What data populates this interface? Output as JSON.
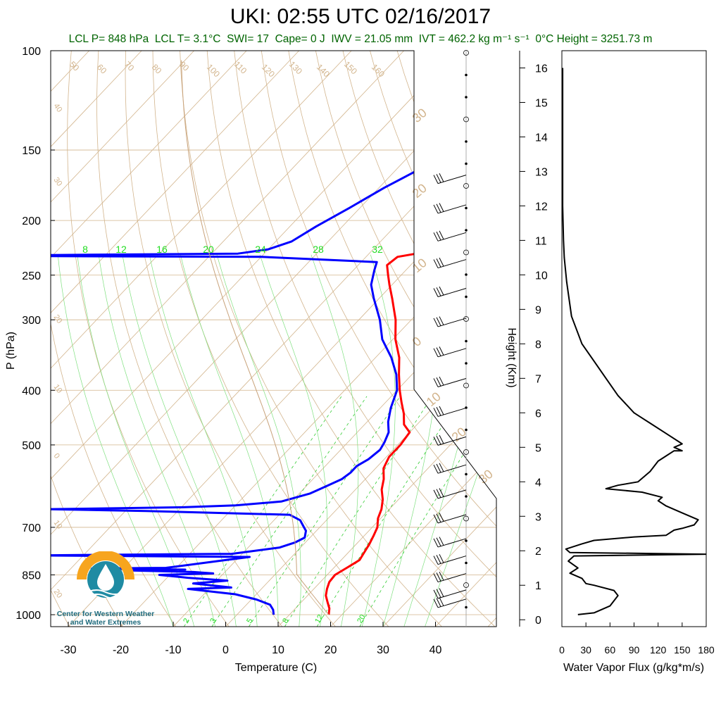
{
  "title": "UKI: 02:55 UTC 02/16/2017",
  "subtitle": {
    "lcl_p": "LCL P= 848 hPa",
    "lcl_t": "LCL T= 3.1°C",
    "swi": "SWI= 17",
    "cape": "Cape= 0 J",
    "iwv": "IWV = 21.05 mm",
    "ivt": "IVT = 462.2 kg m⁻¹ s⁻¹",
    "freezing": "0°C Height = 3251.73 m"
  },
  "logo": {
    "line1": "Center for Western Weather",
    "line2": "and Water Extremes"
  },
  "colors": {
    "temperature": "#ff0000",
    "dewpoint": "#0000ff",
    "isotherm": "#d2b48c",
    "mixing": "#00cc00",
    "subtitle": "#006400"
  },
  "chart_data": [
    {
      "type": "line",
      "name": "skew-t",
      "xlabel": "Temperature (C)",
      "ylabel": "P (hPa)",
      "x_ticks": [
        "-30",
        "-20",
        "-10",
        "0",
        "10",
        "20",
        "30",
        "40"
      ],
      "y_ticks": [
        "100",
        "150",
        "200",
        "250",
        "300",
        "400",
        "500",
        "700",
        "850",
        "1000"
      ],
      "xlim": [
        -34,
        51
      ],
      "ylim_pressure": [
        1050,
        100
      ],
      "y_scale": "log",
      "skew_label_temps": [
        "50",
        "60",
        "70",
        "80",
        "90",
        "100",
        "110",
        "120",
        "130",
        "140",
        "150",
        "160"
      ],
      "dry_adiabat_labels_right": [
        "30",
        "20",
        "10",
        "0",
        "10",
        "20",
        "30"
      ],
      "dry_adiabat_labels_left": [
        "40",
        "30",
        "20",
        "10",
        "0",
        "10",
        "20"
      ],
      "mixing_ratio_top": [
        "8",
        "12",
        "16",
        "20",
        "24",
        "28",
        "32"
      ],
      "mixing_ratio_bottom": [
        "2",
        "3",
        "5",
        "8",
        "12",
        "20"
      ],
      "temperature": [
        [
          1000,
          17.5
        ],
        [
          975,
          16.5
        ],
        [
          950,
          15
        ],
        [
          925,
          13.5
        ],
        [
          900,
          12.5
        ],
        [
          875,
          11.7
        ],
        [
          850,
          11.5
        ],
        [
          825,
          12.5
        ],
        [
          800,
          13.5
        ],
        [
          775,
          13
        ],
        [
          750,
          12.5
        ],
        [
          725,
          11.8
        ],
        [
          700,
          11
        ],
        [
          675,
          9.5
        ],
        [
          650,
          8.5
        ],
        [
          625,
          7
        ],
        [
          600,
          5
        ],
        [
          575,
          3.5
        ],
        [
          550,
          1.5
        ],
        [
          525,
          0.5
        ],
        [
          500,
          0.5
        ],
        [
          475,
          0
        ],
        [
          460,
          -2.5
        ],
        [
          440,
          -4.5
        ],
        [
          420,
          -7
        ],
        [
          400,
          -9.5
        ],
        [
          375,
          -12.5
        ],
        [
          350,
          -15.5
        ],
        [
          325,
          -19.5
        ],
        [
          300,
          -23
        ],
        [
          275,
          -27.5
        ],
        [
          260,
          -30.5
        ],
        [
          250,
          -32.5
        ],
        [
          240,
          -34.5
        ],
        [
          232,
          -34
        ],
        [
          228,
          -30
        ],
        [
          220,
          -22
        ],
        [
          210,
          -18
        ],
        [
          200,
          -16
        ],
        [
          185,
          -14
        ],
        [
          175,
          -13
        ],
        [
          165,
          -11
        ],
        [
          155,
          -9
        ],
        [
          150,
          -8
        ]
      ],
      "dewpoint": [
        [
          1000,
          7
        ],
        [
          980,
          6
        ],
        [
          960,
          4.5
        ],
        [
          940,
          1
        ],
        [
          920,
          -4
        ],
        [
          900,
          -14
        ],
        [
          895,
          -6
        ],
        [
          880,
          -14
        ],
        [
          870,
          -8
        ],
        [
          860,
          -16
        ],
        [
          850,
          -22
        ],
        [
          845,
          -12
        ],
        [
          840,
          -16
        ],
        [
          835,
          -28
        ],
        [
          832,
          -18
        ],
        [
          828,
          -36
        ],
        [
          826,
          -22
        ],
        [
          800,
          -12
        ],
        [
          790,
          -8
        ],
        [
          785,
          -50
        ],
        [
          780,
          -12
        ],
        [
          760,
          -4
        ],
        [
          745,
          -2
        ],
        [
          730,
          -1
        ],
        [
          710,
          -2
        ],
        [
          700,
          -3
        ],
        [
          690,
          -4
        ],
        [
          680,
          -5
        ],
        [
          665,
          -8
        ],
        [
          655,
          -36
        ],
        [
          650,
          -55
        ],
        [
          645,
          -30
        ],
        [
          640,
          -20
        ],
        [
          630,
          -12
        ],
        [
          610,
          -8
        ],
        [
          590,
          -6
        ],
        [
          575,
          -4.5
        ],
        [
          560,
          -4
        ],
        [
          545,
          -4
        ],
        [
          530,
          -3
        ],
        [
          510,
          -2.5
        ],
        [
          495,
          -3
        ],
        [
          475,
          -4
        ],
        [
          455,
          -6
        ],
        [
          430,
          -8
        ],
        [
          400,
          -10
        ],
        [
          375,
          -13
        ],
        [
          350,
          -17
        ],
        [
          325,
          -22
        ],
        [
          300,
          -26
        ],
        [
          275,
          -31
        ],
        [
          260,
          -34
        ],
        [
          245,
          -36
        ],
        [
          237,
          -37
        ],
        [
          232,
          -60
        ],
        [
          231,
          -120
        ],
        [
          229,
          -65
        ],
        [
          225,
          -60
        ],
        [
          218,
          -57
        ],
        [
          205,
          -55
        ],
        [
          190,
          -52
        ],
        [
          175,
          -49
        ],
        [
          160,
          -45
        ],
        [
          155,
          -43
        ],
        [
          150,
          -43
        ]
      ]
    },
    {
      "type": "line",
      "name": "water-vapor-flux",
      "xlabel": "Water Vapor Flux (g/kg*m/s)",
      "ylabel": "Height (Km)",
      "x_ticks": [
        "0",
        "30",
        "60",
        "90",
        "120",
        "150",
        "180"
      ],
      "y_ticks": [
        "0",
        "1",
        "2",
        "3",
        "4",
        "5",
        "6",
        "7",
        "8",
        "9",
        "10",
        "11",
        "12",
        "13",
        "14",
        "15",
        "16"
      ],
      "xlim": [
        0,
        180
      ],
      "ylim": [
        -0.2,
        16.5
      ],
      "x": [
        20,
        40,
        60,
        70,
        65,
        40,
        30,
        25,
        10,
        20,
        8,
        15,
        180,
        10,
        5,
        25,
        40,
        90,
        130,
        140,
        150,
        165,
        170,
        150,
        130,
        120,
        125,
        100,
        55,
        70,
        95,
        110,
        120,
        130,
        140,
        150,
        140,
        150,
        130,
        110,
        100,
        90,
        70,
        55,
        40,
        25,
        12,
        6,
        3,
        2,
        1,
        1
      ],
      "y": [
        0.15,
        0.2,
        0.4,
        0.7,
        0.85,
        1.0,
        1.05,
        1.2,
        1.35,
        1.5,
        1.7,
        1.85,
        1.9,
        1.95,
        2.05,
        2.2,
        2.3,
        2.4,
        2.45,
        2.6,
        2.65,
        2.75,
        2.9,
        3.1,
        3.3,
        3.45,
        3.55,
        3.7,
        3.8,
        3.9,
        4.0,
        4.3,
        4.6,
        4.75,
        4.9,
        4.9,
        5.0,
        5.1,
        5.4,
        5.7,
        5.85,
        6.0,
        6.5,
        7.0,
        7.5,
        8.0,
        8.8,
        9.8,
        10.5,
        11.0,
        12.0,
        16.0
      ]
    }
  ],
  "wind_barbs": {
    "pressures": [
      170,
      192,
      215,
      240,
      270,
      305,
      345,
      390,
      440,
      495,
      555,
      615,
      680,
      750,
      805,
      865,
      925,
      960
    ]
  }
}
